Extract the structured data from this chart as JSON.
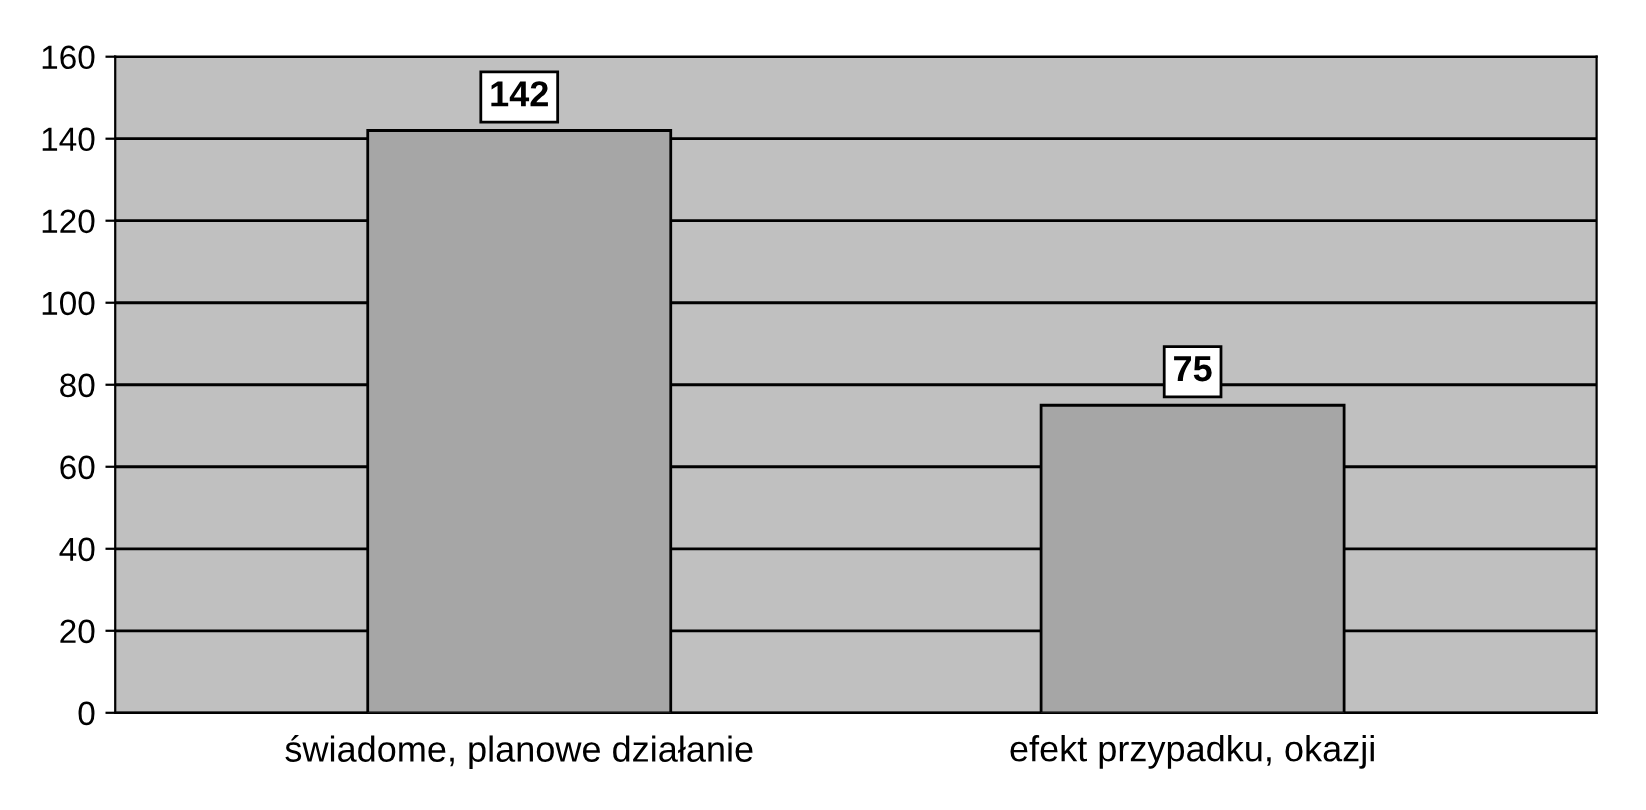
{
  "chart_data": {
    "type": "bar",
    "categories": [
      "świadome, planowe działanie",
      "efekt przypadku, okazji"
    ],
    "values": [
      142,
      75
    ],
    "color": "#a6a6a6",
    "ylim": [
      0,
      160
    ],
    "yticks": [
      0,
      20,
      40,
      60,
      80,
      100,
      120,
      140,
      160
    ],
    "grid": "y",
    "legend": false,
    "data_labels": true
  }
}
